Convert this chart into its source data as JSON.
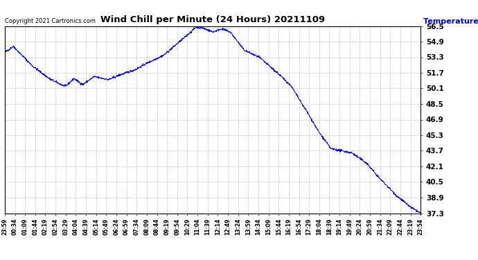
{
  "title": "Wind Chill per Minute (24 Hours) 20211109",
  "ylabel": "Temperature  (°F)",
  "copyright_text": "Copyright 2021 Cartronics.com",
  "line_color": "#0000cc",
  "background_color": "#ffffff",
  "grid_color": "#aaaaaa",
  "title_color": "#000000",
  "ylabel_color": "#0000cc",
  "ylim": [
    37.3,
    56.5
  ],
  "yticks": [
    37.3,
    38.9,
    40.5,
    42.1,
    43.7,
    45.3,
    46.9,
    48.5,
    50.1,
    51.7,
    53.3,
    54.9,
    56.5
  ],
  "xtick_labels": [
    "23:59",
    "00:34",
    "01:09",
    "01:44",
    "02:19",
    "02:54",
    "03:29",
    "04:04",
    "04:39",
    "05:14",
    "05:49",
    "06:24",
    "06:59",
    "07:34",
    "08:09",
    "08:44",
    "09:19",
    "09:54",
    "10:29",
    "11:04",
    "11:39",
    "12:14",
    "12:49",
    "13:24",
    "13:59",
    "14:34",
    "15:09",
    "15:44",
    "16:19",
    "16:54",
    "17:29",
    "18:04",
    "18:39",
    "19:14",
    "19:49",
    "20:24",
    "20:59",
    "21:34",
    "22:09",
    "22:44",
    "23:19",
    "23:54"
  ],
  "num_points": 1440
}
